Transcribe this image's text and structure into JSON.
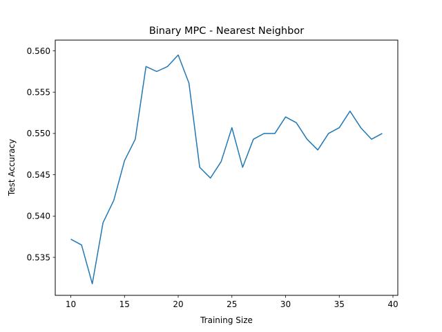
{
  "chart_data": {
    "type": "line",
    "title": "Binary MPC - Nearest Neighbor",
    "xlabel": "Training Size",
    "ylabel": "Test Accuracy",
    "xlim": [
      8.55,
      40.45
    ],
    "ylim": [
      0.5304,
      0.5613
    ],
    "xticks": [
      10,
      15,
      20,
      25,
      30,
      35,
      40
    ],
    "yticks": [
      0.535,
      0.54,
      0.545,
      0.55,
      0.555,
      0.56
    ],
    "ytick_labels": [
      "0.535",
      "0.540",
      "0.545",
      "0.550",
      "0.555",
      "0.560"
    ],
    "grid": false,
    "series": [
      {
        "color": "#1f77b4",
        "x": [
          10,
          11,
          12,
          13,
          14,
          15,
          16,
          17,
          18,
          19,
          20,
          21,
          22,
          23,
          24,
          25,
          26,
          27,
          28,
          29,
          30,
          31,
          32,
          33,
          34,
          35,
          36,
          37,
          38,
          39
        ],
        "y": [
          0.5372,
          0.5365,
          0.5318,
          0.5392,
          0.5419,
          0.5467,
          0.5493,
          0.5581,
          0.5575,
          0.5581,
          0.5595,
          0.5561,
          0.5459,
          0.5446,
          0.5466,
          0.5507,
          0.5459,
          0.5493,
          0.55,
          0.55,
          0.552,
          0.5513,
          0.5493,
          0.548,
          0.55,
          0.5507,
          0.5527,
          0.5507,
          0.5493,
          0.55
        ]
      }
    ]
  }
}
